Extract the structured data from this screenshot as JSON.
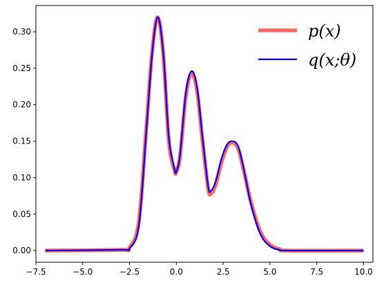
{
  "chart_data": {
    "type": "line",
    "title": "",
    "xlabel": "",
    "ylabel": "",
    "xlim": [
      -7.5,
      10.5
    ],
    "ylim": [
      -0.016,
      0.336
    ],
    "x_ticks": [
      -7.5,
      -5.0,
      -2.5,
      0.0,
      2.5,
      5.0,
      7.5,
      10.0
    ],
    "x_tick_labels": [
      "−7.5",
      "−5.0",
      "−2.5",
      "0.0",
      "2.5",
      "5.0",
      "7.5",
      "10.0"
    ],
    "y_ticks": [
      0.0,
      0.05,
      0.1,
      0.15,
      0.2,
      0.25,
      0.3
    ],
    "y_tick_labels": [
      "0.00",
      "0.05",
      "0.10",
      "0.15",
      "0.20",
      "0.25",
      "0.30"
    ],
    "grid": false,
    "legend": "top-right",
    "x": [
      -7.0,
      -3.0,
      -2.5,
      -2.0,
      -1.6,
      -1.3,
      -1.0,
      -0.7,
      -0.4,
      -0.1,
      0.0,
      0.2,
      0.5,
      0.8,
      1.1,
      1.4,
      1.7,
      1.85,
      2.1,
      2.4,
      2.7,
      3.0,
      3.3,
      3.6,
      4.0,
      4.5,
      5.0,
      5.5,
      6.0,
      10.0
    ],
    "series": [
      {
        "name": "p(x)",
        "color": "#ff6666",
        "values": [
          0.0,
          0.001,
          0.004,
          0.04,
          0.17,
          0.27,
          0.32,
          0.27,
          0.15,
          0.11,
          0.108,
          0.13,
          0.21,
          0.243,
          0.22,
          0.15,
          0.085,
          0.078,
          0.09,
          0.12,
          0.142,
          0.148,
          0.14,
          0.11,
          0.065,
          0.025,
          0.008,
          0.002,
          0.0,
          0.0
        ]
      },
      {
        "name": "q(x;θ)",
        "color": "#0000ee",
        "values": [
          0.0,
          0.001,
          0.003,
          0.035,
          0.165,
          0.268,
          0.32,
          0.272,
          0.155,
          0.112,
          0.108,
          0.132,
          0.215,
          0.246,
          0.225,
          0.155,
          0.088,
          0.082,
          0.095,
          0.125,
          0.145,
          0.15,
          0.143,
          0.112,
          0.062,
          0.022,
          0.006,
          0.001,
          0.0,
          0.0
        ]
      }
    ]
  },
  "legend": {
    "items": [
      {
        "label": "p(x)",
        "color": "#ff6666"
      },
      {
        "label": "q(x;θ)",
        "color": "#0000ee"
      }
    ]
  }
}
